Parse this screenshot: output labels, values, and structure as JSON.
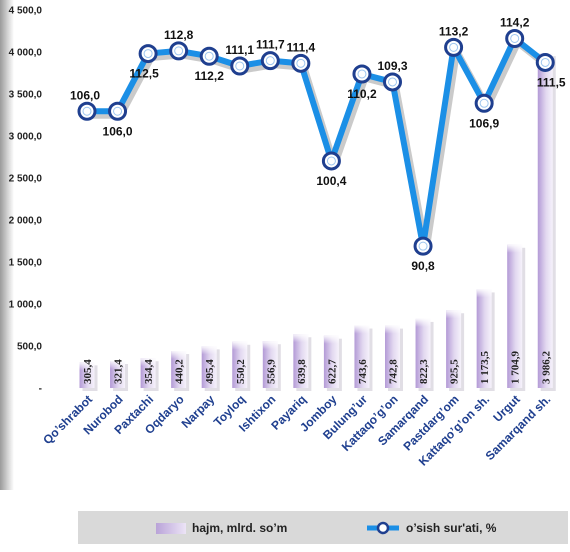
{
  "chart_data": {
    "type": "bar",
    "categories": [
      "Qo’shrabot",
      "Nurobod",
      "Paxtachi",
      "Oqdaryo",
      "Narpay",
      "Toyloq",
      "Ishtixon",
      "Payariq",
      "Jomboy",
      "Bulung’ur",
      "Kattaqo’g’on",
      "Samarqand",
      "Pastdarg’om",
      "Kattaqo’g’on sh.",
      "Urgut",
      "Samarqand sh."
    ],
    "series": [
      {
        "name": "hajm, mlrd. so’m",
        "type": "bar",
        "values": [
          305.4,
          321.4,
          354.4,
          440.2,
          495.4,
          550.2,
          556.9,
          639.8,
          622.7,
          743.6,
          742.8,
          822.3,
          925.5,
          1173.5,
          1704.9,
          3986.2
        ],
        "labels": [
          "305,4",
          "321,4",
          "354,4",
          "440,2",
          "495,4",
          "550,2",
          "556,9",
          "639,8",
          "622,7",
          "743,6",
          "742,8",
          "822,3",
          "925,5",
          "1 173,5",
          "1 704,9",
          "3 986,2"
        ]
      },
      {
        "name": "o’sish sur'ati, %",
        "type": "line",
        "values": [
          106.0,
          106.0,
          112.5,
          112.8,
          112.2,
          111.1,
          111.7,
          111.4,
          100.4,
          110.2,
          109.3,
          90.8,
          113.2,
          106.9,
          114.2,
          111.5
        ],
        "labels": [
          "106,0",
          "106,0",
          "112,5",
          "112,8",
          "112,2",
          "111,1",
          "111,7",
          "111,4",
          "100,4",
          "110,2",
          "109,3",
          "90,8",
          "113,2",
          "106,9",
          "114,2",
          "111,5"
        ]
      }
    ],
    "y_axis": {
      "ticks": [
        0,
        500,
        1000,
        1500,
        2000,
        2500,
        3000,
        3500,
        4000,
        4500
      ],
      "tick_labels": [
        "-",
        "500,0",
        "1 000,0",
        "1 500,0",
        "2 000,0",
        "2 500,0",
        "3 000,0",
        "3 500,0",
        "4 000,0",
        "4 500,0"
      ],
      "ylim": [
        0,
        4500
      ]
    },
    "legend_position": "bottom",
    "colors": {
      "bar_dark": "#b49bd5",
      "bar_light": "#efe9f7",
      "bar_shadow": "#c9c2cf",
      "line": "#1b8fe6",
      "line_shadow": "#8a8a8a",
      "marker_ring": "#1f3f8f",
      "axis_label": "#1f3f8f"
    }
  },
  "legend": {
    "bar_label": "hajm, mlrd. so’m",
    "line_label": "o’sish sur'ati, %"
  }
}
